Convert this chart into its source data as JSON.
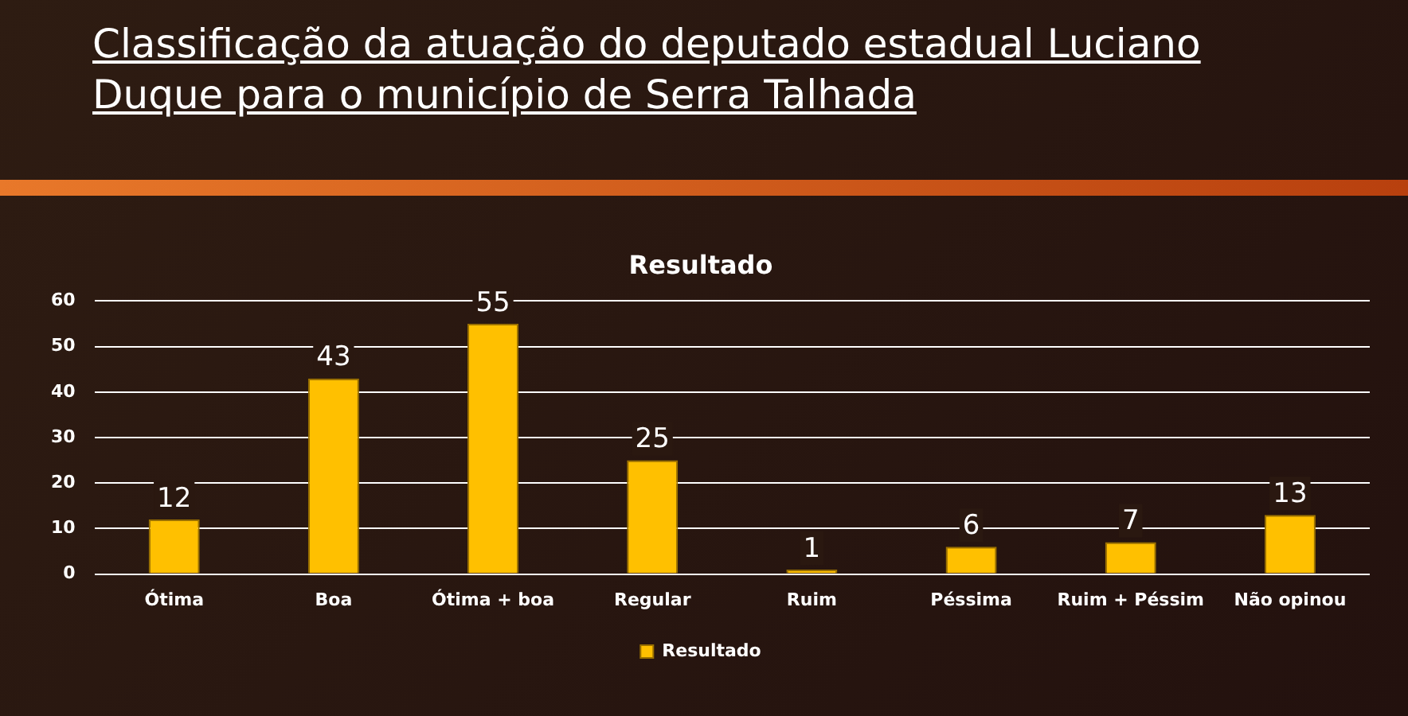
{
  "chart_data": {
    "type": "bar",
    "title": "Resultado",
    "categories": [
      "Ótima",
      "Boa",
      "Ótima + boa",
      "Regular",
      "Ruim",
      "Péssima",
      "Ruim + Péssim",
      "Não opinou"
    ],
    "series": [
      {
        "name": "Resultado",
        "color": "#ffc000",
        "values": [
          12,
          43,
          55,
          25,
          1,
          6,
          7,
          13
        ]
      }
    ],
    "ylim": [
      0,
      60
    ],
    "yticks": [
      0,
      10,
      20,
      30,
      40,
      50,
      60
    ],
    "grid": "y",
    "legend": "bottom",
    "data_labels": true,
    "annotations": [
      "Classificação da atuação do deputado estadual Luciano Duque para o município de Serra Talhada"
    ]
  }
}
